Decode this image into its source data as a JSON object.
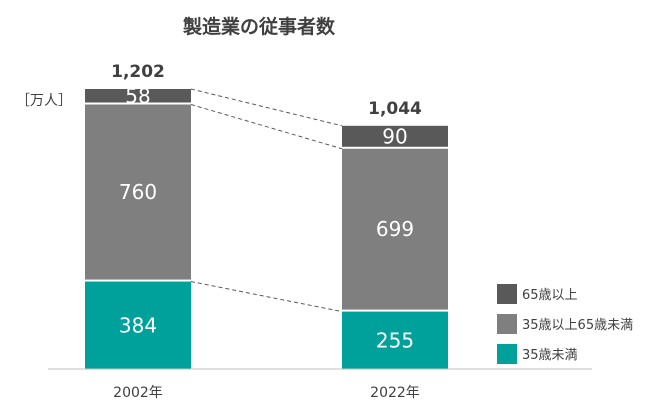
{
  "chart_data": {
    "type": "bar",
    "stacked": true,
    "title": "製造業の従事者数",
    "unit_label": "［万人］",
    "categories": [
      "2002年",
      "2022年"
    ],
    "totals": [
      "1,202",
      "1,044"
    ],
    "series": [
      {
        "name": "35歳未満",
        "values": [
          384,
          255
        ],
        "color": "#00A19A"
      },
      {
        "name": "35歳以上65歳未満",
        "values": [
          760,
          699
        ],
        "color": "#7F7F7F"
      },
      {
        "name": "65歳以上",
        "values": [
          58,
          90
        ],
        "color": "#595959"
      }
    ],
    "legend_order": [
      "65歳以上",
      "35歳以上65歳未満",
      "35歳未満"
    ],
    "legend_position": "right",
    "connector_lines": "dashed",
    "grid": false
  }
}
